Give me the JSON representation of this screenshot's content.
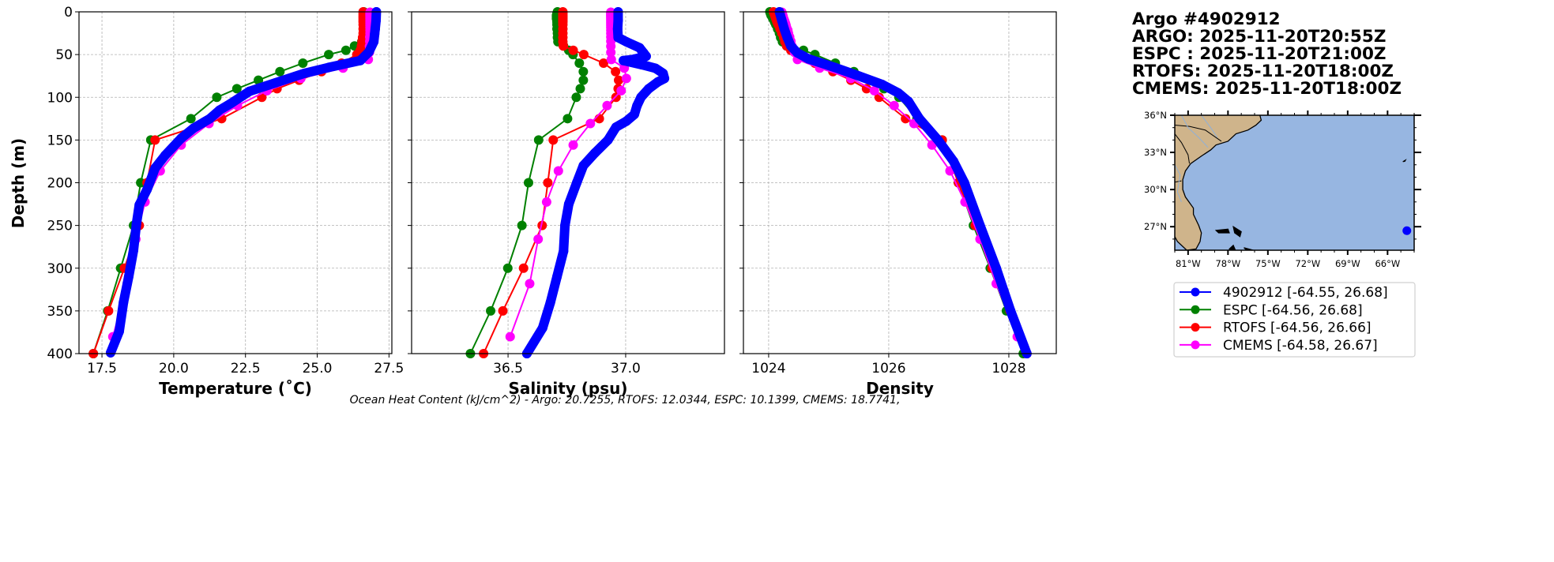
{
  "colors": {
    "argo": "#0000ff",
    "espc": "#008000",
    "rtofs": "#ff0000",
    "cmems": "#ff00ff",
    "land": "#cfb48b",
    "ocean": "#97b6e1"
  },
  "title_lines": [
    "Argo #4902912",
    "ARGO: 2025-11-20T20:55Z",
    "ESPC : 2025-11-20T21:00Z",
    "RTOFS: 2025-11-20T18:00Z",
    "CMEMS: 2025-11-20T18:00Z"
  ],
  "footer": "Ocean Heat Content (kJ/cm^2) - Argo: 20.7255,  RTOFS: 12.0344,  ESPC: 10.1399,  CMEMS: 18.7741,",
  "legend": [
    {
      "key": "argo",
      "label": "4902912 [-64.55, 26.68]"
    },
    {
      "key": "espc",
      "label": "ESPC [-64.56, 26.68]"
    },
    {
      "key": "rtofs",
      "label": "RTOFS [-64.56, 26.66]"
    },
    {
      "key": "cmems",
      "label": "CMEMS [-64.58, 26.67]"
    }
  ],
  "map": {
    "lon_range": [
      -82,
      -64
    ],
    "lat_range": [
      25.1,
      36
    ],
    "lon_ticks": [
      "81°W",
      "78°W",
      "75°W",
      "72°W",
      "69°W",
      "66°W"
    ],
    "lon_tick_values": [
      -81,
      -78,
      -75,
      -72,
      -69,
      -66
    ],
    "lat_ticks": [
      "27°N",
      "30°N",
      "33°N",
      "36°N"
    ],
    "lat_tick_values": [
      27,
      30,
      33,
      36
    ],
    "float_position": [
      -64.55,
      26.68
    ]
  },
  "chart_data": [
    {
      "type": "line",
      "name": "temperature",
      "xlabel": "Temperature (˚C)",
      "ylabel": "Depth (m)",
      "xlim": [
        16.7,
        27.6
      ],
      "ylim": [
        400,
        0
      ],
      "grid": true,
      "xticks": [
        17.5,
        20.0,
        22.5,
        25.0,
        27.5
      ],
      "xtick_labels": [
        "17.5",
        "20.0",
        "22.5",
        "25.0",
        "27.5"
      ],
      "yticks": [
        0,
        50,
        100,
        150,
        200,
        250,
        300,
        350,
        400
      ],
      "ytick_labels": [
        "0",
        "50",
        "100",
        "150",
        "200",
        "250",
        "300",
        "350",
        "400"
      ],
      "series": [
        {
          "key": "argo",
          "depth": [
            0,
            10,
            20,
            26,
            35,
            47,
            57,
            65,
            72,
            83,
            93,
            107,
            115,
            125,
            136,
            148,
            168,
            183,
            208,
            226,
            248,
            279,
            310,
            340,
            374,
            399
          ],
          "values": [
            27.06,
            27.05,
            27.02,
            27.0,
            26.97,
            26.8,
            26.5,
            25.4,
            24.55,
            23.55,
            22.64,
            22.0,
            21.6,
            21.26,
            20.7,
            20.26,
            19.7,
            19.35,
            19.07,
            18.8,
            18.7,
            18.6,
            18.43,
            18.25,
            18.1,
            17.8
          ]
        },
        {
          "key": "espc",
          "depth": [
            0,
            2,
            4,
            6,
            8,
            10,
            12,
            15,
            20,
            25,
            30,
            35,
            40,
            45,
            50,
            60,
            70,
            80,
            90,
            100,
            125,
            150,
            200,
            250,
            300,
            350,
            400
          ],
          "values": [
            26.62,
            26.62,
            26.62,
            26.62,
            26.62,
            26.62,
            26.62,
            26.62,
            26.62,
            26.62,
            26.6,
            26.55,
            26.3,
            26.0,
            25.4,
            24.5,
            23.7,
            22.95,
            22.2,
            21.5,
            20.6,
            19.2,
            18.85,
            18.6,
            18.15,
            17.7,
            17.2
          ]
        },
        {
          "key": "rtofs",
          "depth": [
            0,
            2,
            4,
            6,
            8,
            10,
            12,
            15,
            20,
            25,
            30,
            35,
            40,
            45,
            50,
            60,
            70,
            80,
            90,
            100,
            125,
            150,
            200,
            250,
            300,
            350,
            400
          ],
          "values": [
            26.6,
            26.6,
            26.6,
            26.6,
            26.6,
            26.6,
            26.6,
            26.6,
            26.6,
            26.6,
            26.58,
            26.56,
            26.54,
            26.5,
            26.38,
            25.85,
            25.15,
            24.37,
            23.6,
            23.07,
            21.67,
            19.35,
            19.07,
            18.8,
            18.28,
            17.73,
            17.2
          ]
        },
        {
          "key": "cmems",
          "depth": [
            0.5,
            1.5,
            2.6,
            3.8,
            5.1,
            6.4,
            7.9,
            9.6,
            11.4,
            13.5,
            15.8,
            18.5,
            21.6,
            25.2,
            29.4,
            34.4,
            40.3,
            47.4,
            55.8,
            65.8,
            77.9,
            92.3,
            109.7,
            130.7,
            155.9,
            186.1,
            222.5,
            266.0,
            318.1,
            380.2
          ],
          "values": [
            26.84,
            26.84,
            26.84,
            26.84,
            26.84,
            26.84,
            26.84,
            26.84,
            26.84,
            26.84,
            26.84,
            26.84,
            26.84,
            26.84,
            26.83,
            26.83,
            26.82,
            26.82,
            26.78,
            25.9,
            24.43,
            23.25,
            22.22,
            21.23,
            20.26,
            19.53,
            19.0,
            18.68,
            18.38,
            17.88
          ]
        }
      ]
    },
    {
      "type": "line",
      "name": "salinity",
      "xlabel": "Salinity (psu)",
      "xlim": [
        36.09,
        37.42
      ],
      "ylim": [
        400,
        0
      ],
      "grid": true,
      "xticks": [
        36.5,
        37.0
      ],
      "xtick_labels": [
        "36.5",
        "37.0"
      ],
      "yticks": [
        0,
        50,
        100,
        150,
        200,
        250,
        300,
        350,
        400
      ],
      "series": [
        {
          "key": "argo",
          "depth": [
            0,
            10,
            20,
            30,
            35,
            42,
            48,
            52,
            56,
            57,
            62,
            66,
            72,
            78,
            82,
            90,
            100,
            110,
            120,
            128,
            135,
            150,
            165,
            180,
            200,
            225,
            250,
            280,
            310,
            340,
            370,
            400
          ],
          "values": [
            36.968,
            36.968,
            36.966,
            36.968,
            37.003,
            37.059,
            37.076,
            37.087,
            37.026,
            36.99,
            37.07,
            37.126,
            37.159,
            37.165,
            37.137,
            37.098,
            37.065,
            37.048,
            37.037,
            37.003,
            36.959,
            36.925,
            36.87,
            36.82,
            36.792,
            36.758,
            36.742,
            36.736,
            36.708,
            36.68,
            36.647,
            36.58
          ]
        },
        {
          "key": "espc",
          "depth": [
            0,
            2,
            4,
            6,
            8,
            10,
            12,
            15,
            20,
            25,
            30,
            35,
            40,
            45,
            50,
            60,
            70,
            80,
            90,
            100,
            125,
            150,
            200,
            250,
            300,
            350,
            400
          ],
          "values": [
            36.71,
            36.708,
            36.706,
            36.706,
            36.706,
            36.708,
            36.708,
            36.708,
            36.708,
            36.71,
            36.71,
            36.712,
            36.736,
            36.758,
            36.776,
            36.803,
            36.82,
            36.82,
            36.807,
            36.79,
            36.753,
            36.63,
            36.587,
            36.559,
            36.499,
            36.426,
            36.34
          ]
        },
        {
          "key": "rtofs",
          "depth": [
            0,
            2,
            4,
            6,
            8,
            10,
            12,
            15,
            20,
            25,
            30,
            35,
            40,
            45,
            50,
            60,
            70,
            80,
            90,
            100,
            125,
            150,
            200,
            250,
            300,
            350,
            400
          ],
          "values": [
            36.733,
            36.733,
            36.733,
            36.733,
            36.733,
            36.733,
            36.733,
            36.733,
            36.733,
            36.733,
            36.733,
            36.733,
            36.735,
            36.777,
            36.822,
            36.906,
            36.957,
            36.97,
            36.968,
            36.959,
            36.888,
            36.692,
            36.669,
            36.645,
            36.566,
            36.478,
            36.396
          ]
        },
        {
          "key": "cmems",
          "depth": [
            0.5,
            1.5,
            2.6,
            3.8,
            5.1,
            6.4,
            7.9,
            9.6,
            11.4,
            13.5,
            15.8,
            18.5,
            21.6,
            25.2,
            29.4,
            34.4,
            40.3,
            47.4,
            55.8,
            65.8,
            77.9,
            92.3,
            109.7,
            130.7,
            155.9,
            186.1,
            222.5,
            266.0,
            318.1,
            380.2
          ],
          "values": [
            36.937,
            36.937,
            36.937,
            36.937,
            36.937,
            36.937,
            36.937,
            36.937,
            36.937,
            36.937,
            36.937,
            36.937,
            36.937,
            36.937,
            36.937,
            36.937,
            36.937,
            36.937,
            36.939,
            36.994,
            37.003,
            36.981,
            36.921,
            36.85,
            36.777,
            36.714,
            36.664,
            36.628,
            36.592,
            36.509
          ]
        }
      ]
    },
    {
      "type": "line",
      "name": "density",
      "xlabel": "Density",
      "xlim": [
        1023.58,
        1028.79
      ],
      "ylim": [
        400,
        0
      ],
      "grid": true,
      "xticks": [
        1024,
        1026,
        1028
      ],
      "xtick_labels": [
        "1024",
        "1026",
        "1028"
      ],
      "yticks": [
        0,
        50,
        100,
        150,
        200,
        250,
        300,
        350,
        400
      ],
      "series": [
        {
          "key": "argo",
          "depth": [
            0,
            10,
            20,
            30,
            40,
            48,
            55,
            65,
            75,
            85,
            95,
            105,
            125,
            150,
            175,
            200,
            250,
            300,
            350,
            400
          ],
          "values": [
            1024.18,
            1024.22,
            1024.26,
            1024.31,
            1024.37,
            1024.48,
            1024.66,
            1025.1,
            1025.5,
            1025.89,
            1026.16,
            1026.33,
            1026.51,
            1026.82,
            1027.08,
            1027.26,
            1027.52,
            1027.79,
            1028.03,
            1028.3
          ]
        },
        {
          "key": "espc",
          "depth": [
            0,
            2,
            4,
            6,
            8,
            10,
            12,
            15,
            20,
            25,
            30,
            35,
            40,
            45,
            50,
            60,
            70,
            80,
            90,
            100,
            125,
            150,
            200,
            250,
            300,
            350,
            400
          ],
          "values": [
            1024.02,
            1024.03,
            1024.04,
            1024.06,
            1024.07,
            1024.09,
            1024.1,
            1024.12,
            1024.15,
            1024.18,
            1024.2,
            1024.23,
            1024.3,
            1024.58,
            1024.77,
            1025.11,
            1025.42,
            1025.68,
            1025.92,
            1026.17,
            1026.47,
            1026.89,
            1027.16,
            1027.41,
            1027.69,
            1027.96,
            1028.24
          ]
        },
        {
          "key": "rtofs",
          "depth": [
            0,
            2,
            4,
            6,
            8,
            10,
            12,
            15,
            20,
            25,
            30,
            35,
            40,
            45,
            50,
            60,
            70,
            80,
            90,
            100,
            125,
            150,
            200,
            250,
            300,
            350,
            400
          ],
          "values": [
            1024.08,
            1024.09,
            1024.1,
            1024.11,
            1024.12,
            1024.13,
            1024.14,
            1024.16,
            1024.19,
            1024.22,
            1024.25,
            1024.27,
            1024.3,
            1024.37,
            1024.51,
            1024.77,
            1025.07,
            1025.37,
            1025.63,
            1025.84,
            1026.28,
            1026.89,
            1027.16,
            1027.44,
            1027.72,
            1028.02,
            1028.3
          ]
        },
        {
          "key": "cmems",
          "depth": [
            0.5,
            1.5,
            2.6,
            3.8,
            5.1,
            6.4,
            7.9,
            9.6,
            11.4,
            13.5,
            15.8,
            18.5,
            21.6,
            25.2,
            29.4,
            34.4,
            40.3,
            47.4,
            55.8,
            65.8,
            77.9,
            92.3,
            109.7,
            130.7,
            155.9,
            186.1,
            222.5,
            266.0,
            318.1,
            380.2
          ],
          "values": [
            1024.22,
            1024.22,
            1024.23,
            1024.23,
            1024.24,
            1024.24,
            1024.25,
            1024.26,
            1024.27,
            1024.28,
            1024.29,
            1024.3,
            1024.32,
            1024.33,
            1024.35,
            1024.37,
            1024.39,
            1024.43,
            1024.48,
            1024.85,
            1025.37,
            1025.76,
            1026.09,
            1026.42,
            1026.72,
            1027.02,
            1027.27,
            1027.52,
            1027.79,
            1028.14
          ]
        }
      ]
    }
  ]
}
